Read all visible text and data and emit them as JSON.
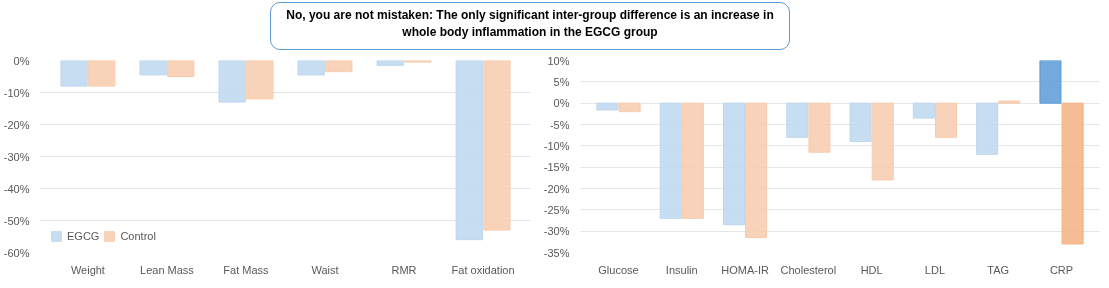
{
  "chart_data": [
    {
      "type": "bar",
      "categories": [
        "Weight",
        "Lean Mass",
        "Fat Mass",
        "Waist",
        "RMR",
        "Fat oxidation"
      ],
      "series": [
        {
          "name": "EGCG",
          "color": "#bdd7ee",
          "values": [
            -8,
            -4.5,
            -13,
            -4.5,
            -1.5,
            -56
          ]
        },
        {
          "name": "Control",
          "color": "#f8cbad",
          "values": [
            -8,
            -5,
            -12,
            -3.5,
            -0.5,
            -53
          ]
        }
      ],
      "ylim": [
        -60,
        0
      ],
      "yticks": [
        {
          "value": 0,
          "label": "0%"
        },
        {
          "value": -10,
          "label": "-10%"
        },
        {
          "value": -20,
          "label": "-20%"
        },
        {
          "value": -30,
          "label": "-30%"
        },
        {
          "value": -40,
          "label": "-40%"
        },
        {
          "value": -50,
          "label": "-50%"
        },
        {
          "value": -60,
          "label": "-60%"
        }
      ],
      "grid": "y",
      "legend": "bottom left",
      "annotations": [
        "No, you are not mistaken:  The only significant inter-group difference is an increase in whole body inflammation in the EGCG group"
      ]
    },
    {
      "type": "bar",
      "categories": [
        "Glucose",
        "Insulin",
        "HOMA-IR",
        "Cholesterol",
        "HDL",
        "LDL",
        "TAG",
        "CRP"
      ],
      "series": [
        {
          "colors": [
            "#bdd7ee",
            "#bdd7ee",
            "#bdd7ee",
            "#bdd7ee",
            "#bdd7ee",
            "#bdd7ee",
            "#bdd7ee",
            "#5b9bd5"
          ],
          "values": [
            -1.6,
            -27,
            -28.5,
            -8,
            -9,
            -3.5,
            -12,
            10
          ]
        },
        {
          "colors": [
            "#f8cbad",
            "#f8cbad",
            "#f8cbad",
            "#f8cbad",
            "#f8cbad",
            "#f8cbad",
            "#f8cbad",
            "#f4b183"
          ],
          "values": [
            -2,
            -27,
            -31.5,
            -11.5,
            -18,
            -8,
            0.5,
            -33
          ]
        }
      ],
      "ylim": [
        -35,
        10
      ],
      "yticks": [
        {
          "value": 10,
          "label": "10%"
        },
        {
          "value": 5,
          "label": "5%"
        },
        {
          "value": 0,
          "label": "0%"
        },
        {
          "value": -5,
          "label": "-5%"
        },
        {
          "value": -10,
          "label": "-10%"
        },
        {
          "value": -15,
          "label": "-15%"
        },
        {
          "value": -20,
          "label": "-20%"
        },
        {
          "value": -25,
          "label": "-25%"
        },
        {
          "value": -30,
          "label": "-30%"
        },
        {
          "value": -35,
          "label": "-35%"
        }
      ],
      "grid": "y"
    }
  ]
}
